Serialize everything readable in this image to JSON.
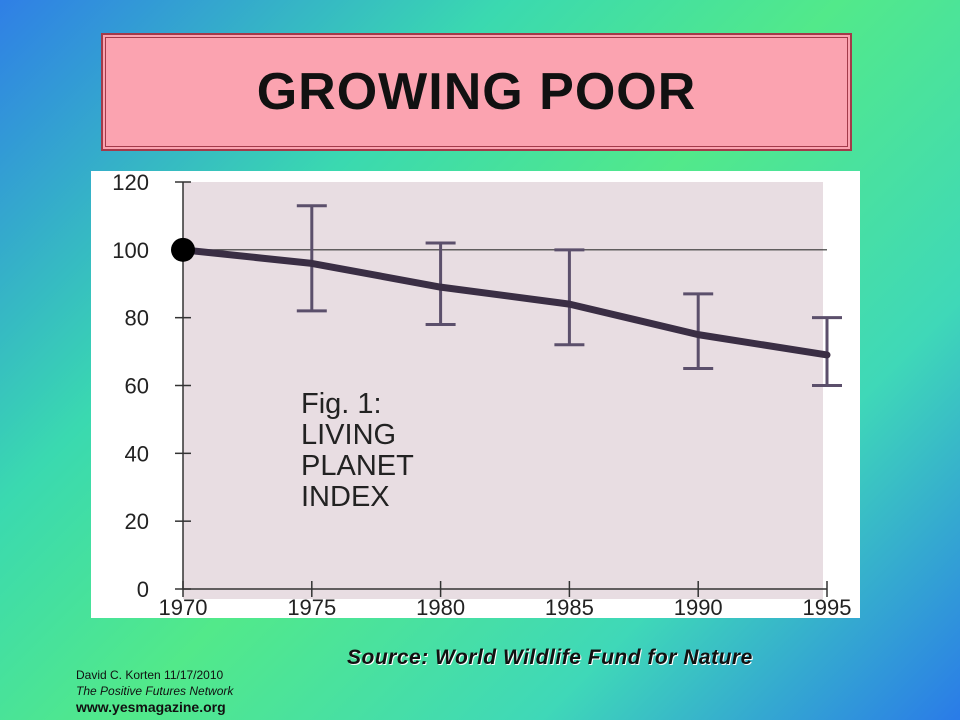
{
  "slide": {
    "title": "GROWING POOR",
    "source": "Source: World Wildlife Fund for Nature",
    "footer": {
      "author_line": "David  C. Korten   11/17/2010",
      "organization": "The Positive Futures Network",
      "url": "www.yesmagazine.org"
    }
  },
  "chart_data": {
    "type": "line",
    "title": "",
    "annotation": [
      "Fig. 1:",
      "LIVING",
      "PLANET",
      "INDEX"
    ],
    "xlabel": "",
    "ylabel": "",
    "x": [
      1970,
      1975,
      1980,
      1985,
      1990,
      1995
    ],
    "x_tick_labels": [
      "1970",
      "1975",
      "1980",
      "1985",
      "1990",
      "1995"
    ],
    "y_ticks": [
      0,
      20,
      40,
      60,
      80,
      100,
      120
    ],
    "y_tick_labels": [
      "0",
      "20",
      "40",
      "60",
      "80",
      "100",
      "120"
    ],
    "ylim": [
      0,
      120
    ],
    "xlim": [
      1970,
      1995
    ],
    "reference_line": 100,
    "series": [
      {
        "values": [
          100,
          96,
          89,
          84,
          75,
          69
        ],
        "error_low": [
          null,
          82,
          78,
          72,
          65,
          60
        ],
        "error_high": [
          null,
          113,
          102,
          100,
          87,
          80
        ]
      }
    ],
    "colors": {
      "line": "#3a2e44",
      "errorbar": "#5b4f6b",
      "plot_bg": "#e8dde2",
      "marker": "#000000"
    },
    "grid": false
  }
}
